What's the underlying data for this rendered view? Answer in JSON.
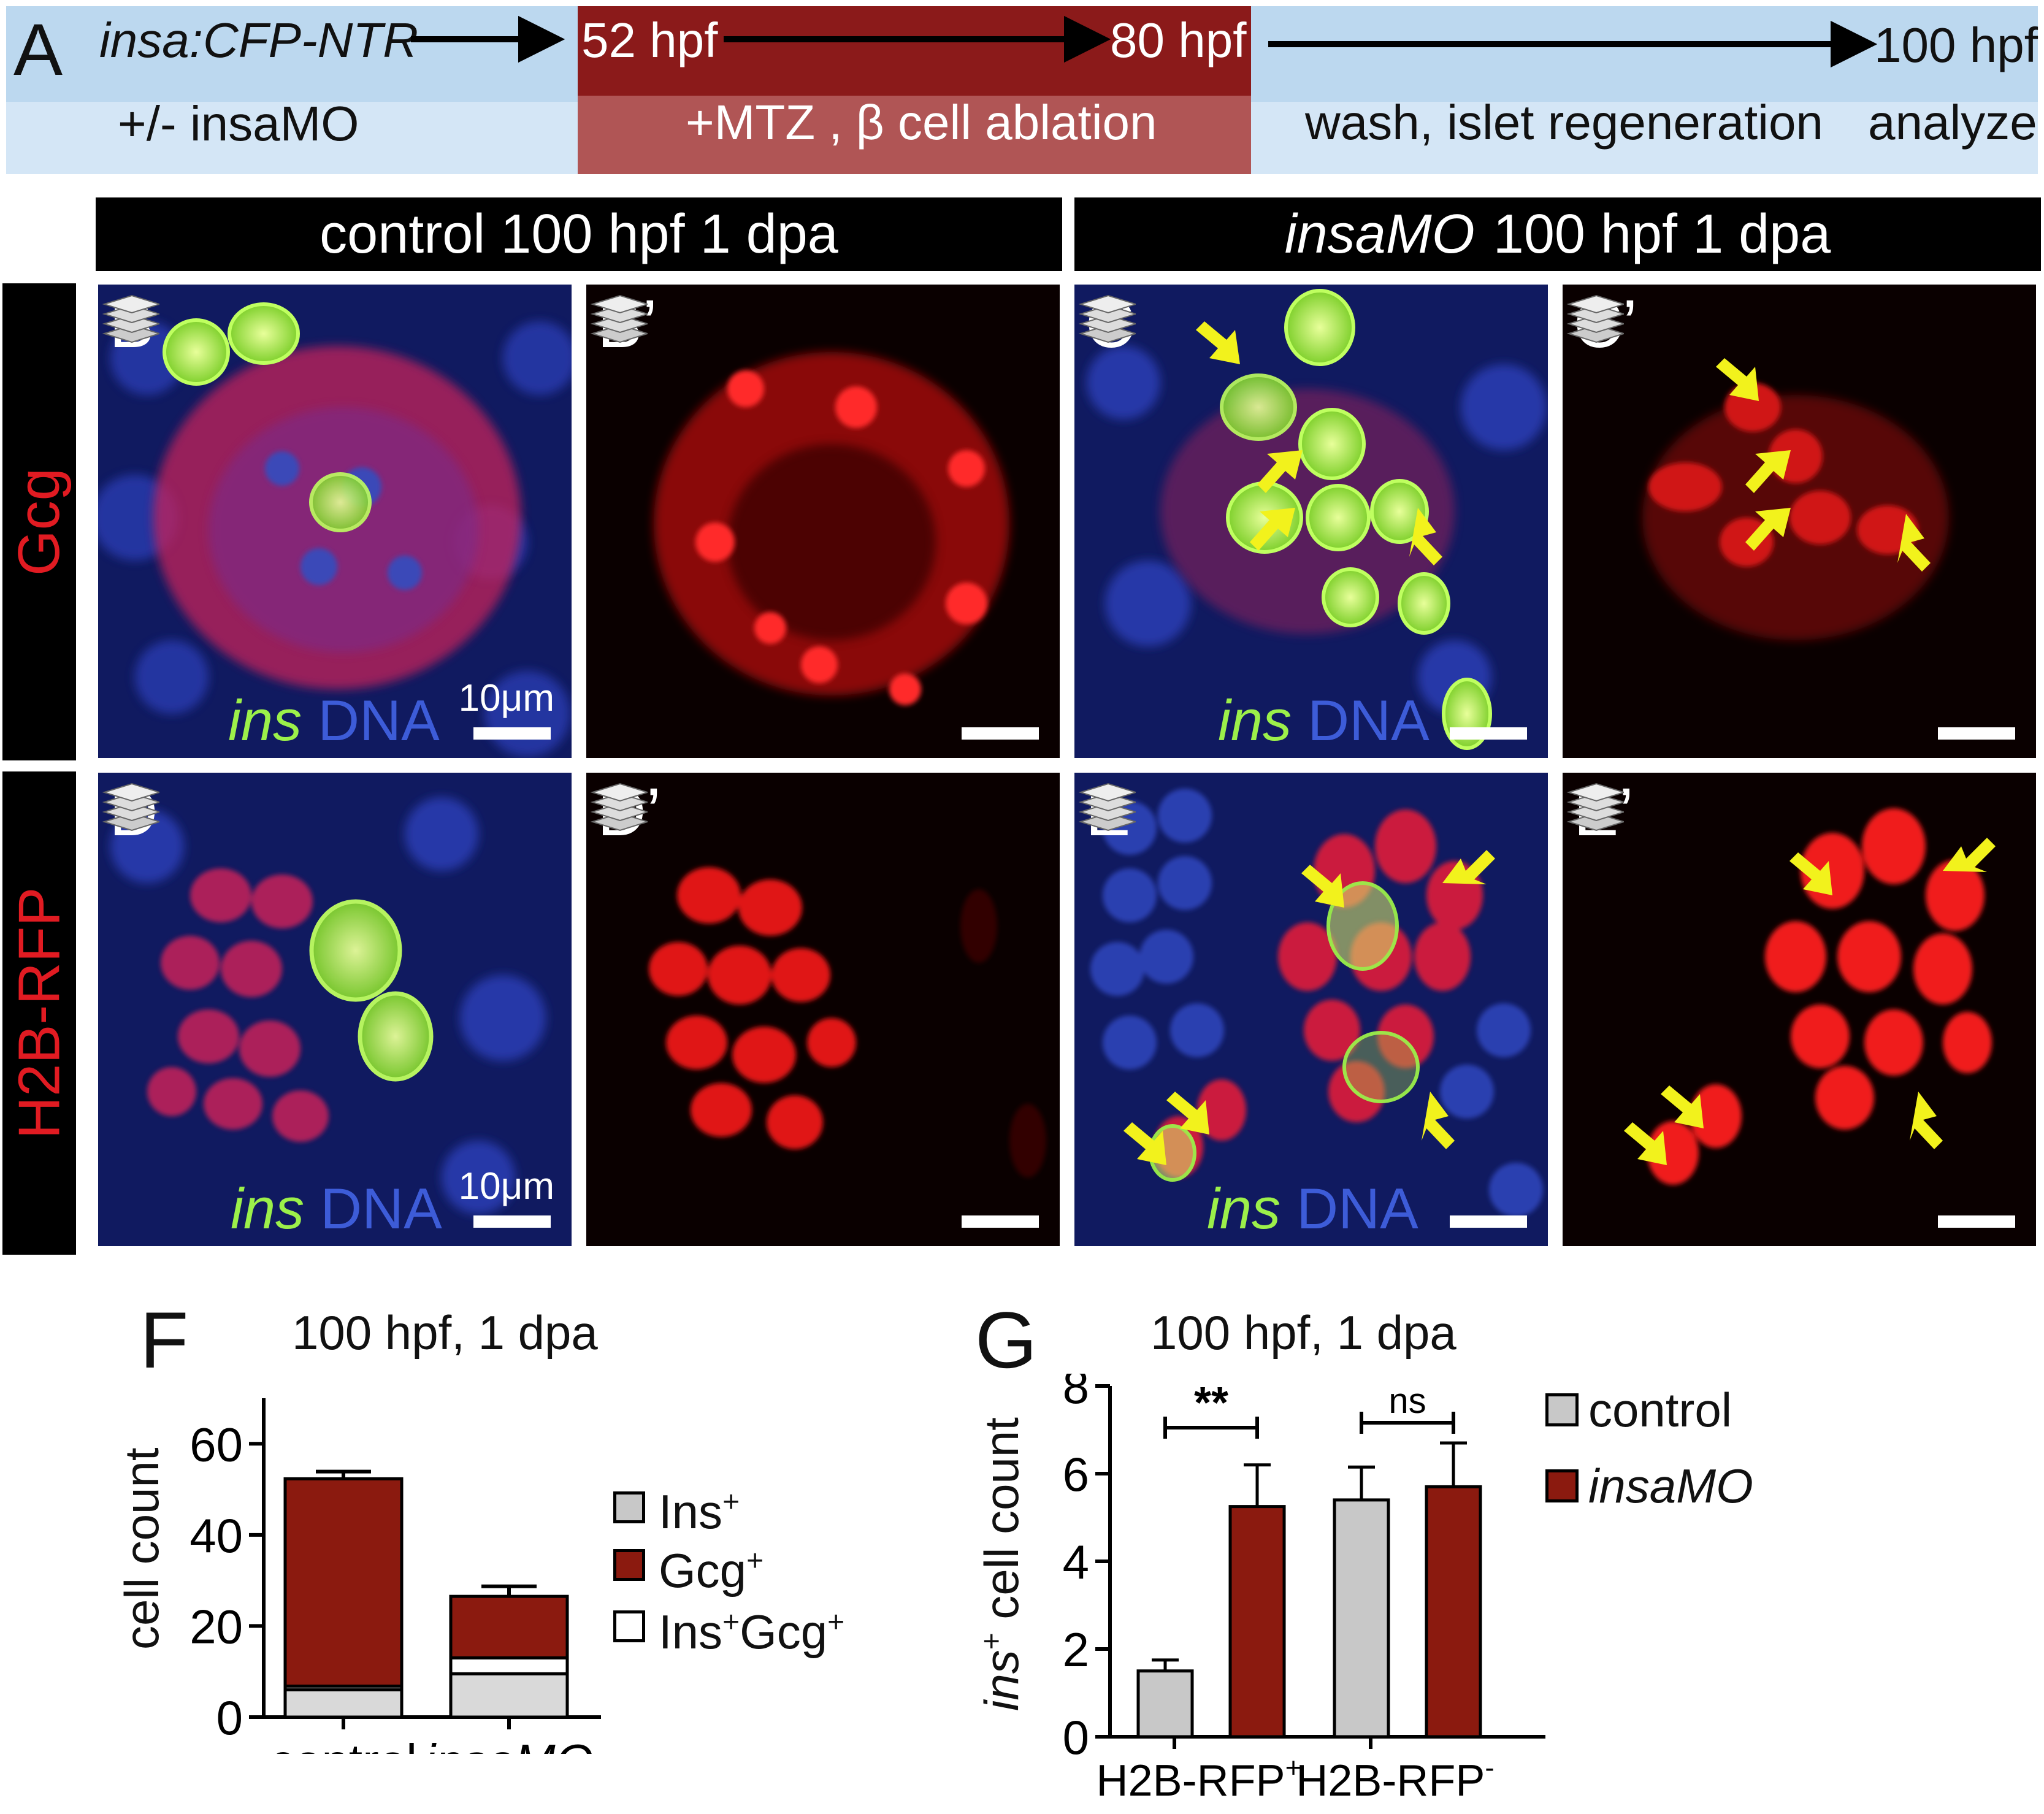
{
  "timeline": {
    "label": "A",
    "line": "insa:CFP-NTR",
    "treatment": "+/- insaMO",
    "start_time": "52 hpf",
    "end_time": "80 hpf",
    "ablation": "+MTZ ,  β cell ablation",
    "final_time": "100 hpf",
    "wash": "wash,  islet regeneration",
    "analyze": "analyze"
  },
  "headers": {
    "control_title": "control   100 hpf  1 dpa",
    "insamo_name": "insaMO",
    "insamo_rest": "100 hpf  1 dpa"
  },
  "row_labels": {
    "row1": "Gcg",
    "row2": "H2B-RFP"
  },
  "panels": {
    "B": "B",
    "Bp": "B’",
    "C": "C",
    "Cp": "C’",
    "D": "D",
    "Dp": "D’",
    "E": "E",
    "Ep": "E’"
  },
  "panel_legend": {
    "ins": "ins",
    "dna": "DNA",
    "scale": "10μm"
  },
  "colors": {
    "ins_green": "#9cf04a",
    "dna_blue": "#2a3fa8",
    "red_signal": "#ff1a1a",
    "arrow_yellow": "#f2f21c",
    "control_gray": "#c8c8c8",
    "insamo_red": "#8b1a0f"
  },
  "chart_F": {
    "label": "F",
    "title": "100 hpf, 1 dpa",
    "ylabel": "cell count",
    "legend": [
      {
        "name": "Ins",
        "sup": "+"
      },
      {
        "name": "Gcg",
        "sup": "+"
      },
      {
        "name": "Ins",
        "sup": "+",
        "name2": "Gcg",
        "sup2": "+"
      }
    ]
  },
  "chart_G": {
    "label": "G",
    "title": "100 hpf, 1 dpa",
    "ylabel_italic": "ins",
    "ylabel_sup": "+",
    "ylabel_rest": " cell count",
    "sig1": "**",
    "sig2": "ns",
    "cat1": "H2B-RFP",
    "cat1_sup": "+",
    "cat2": "H2B-RFP",
    "cat2_sup": "-",
    "legend_control": "control",
    "legend_insamo": "insaMO"
  },
  "chart_data": [
    {
      "type": "bar",
      "stacked": true,
      "categories": [
        "control",
        "insaMO"
      ],
      "series": [
        {
          "name": "Ins+",
          "values": [
            6,
            9.5
          ],
          "color": "#d9d9d9"
        },
        {
          "name": "Ins+Gcg+",
          "values": [
            0.8,
            3.5
          ],
          "color": "#ffffff"
        },
        {
          "name": "Gcg+",
          "values": [
            45.5,
            13.5
          ],
          "color": "#8b1a0f"
        }
      ],
      "error_top": [
        1.6,
        2.2
      ],
      "ylim": [
        0,
        70
      ],
      "yticks": [
        0,
        20,
        40,
        60
      ],
      "title": "100 hpf, 1 dpa",
      "ylabel": "cell count"
    },
    {
      "type": "bar",
      "categories": [
        "H2B-RFP+",
        "H2B-RFP-"
      ],
      "series": [
        {
          "name": "control",
          "values": [
            1.5,
            5.4
          ],
          "errors": [
            0.25,
            0.75
          ],
          "color": "#c8c8c8"
        },
        {
          "name": "insaMO",
          "values": [
            5.25,
            5.7
          ],
          "errors": [
            0.95,
            1.0
          ],
          "color": "#8b1a0f"
        }
      ],
      "ylim": [
        0,
        8
      ],
      "yticks": [
        0,
        2,
        4,
        6,
        8
      ],
      "title": "100 hpf, 1 dpa",
      "ylabel": "ins+ cell count",
      "significance": [
        "**",
        "ns"
      ]
    }
  ]
}
